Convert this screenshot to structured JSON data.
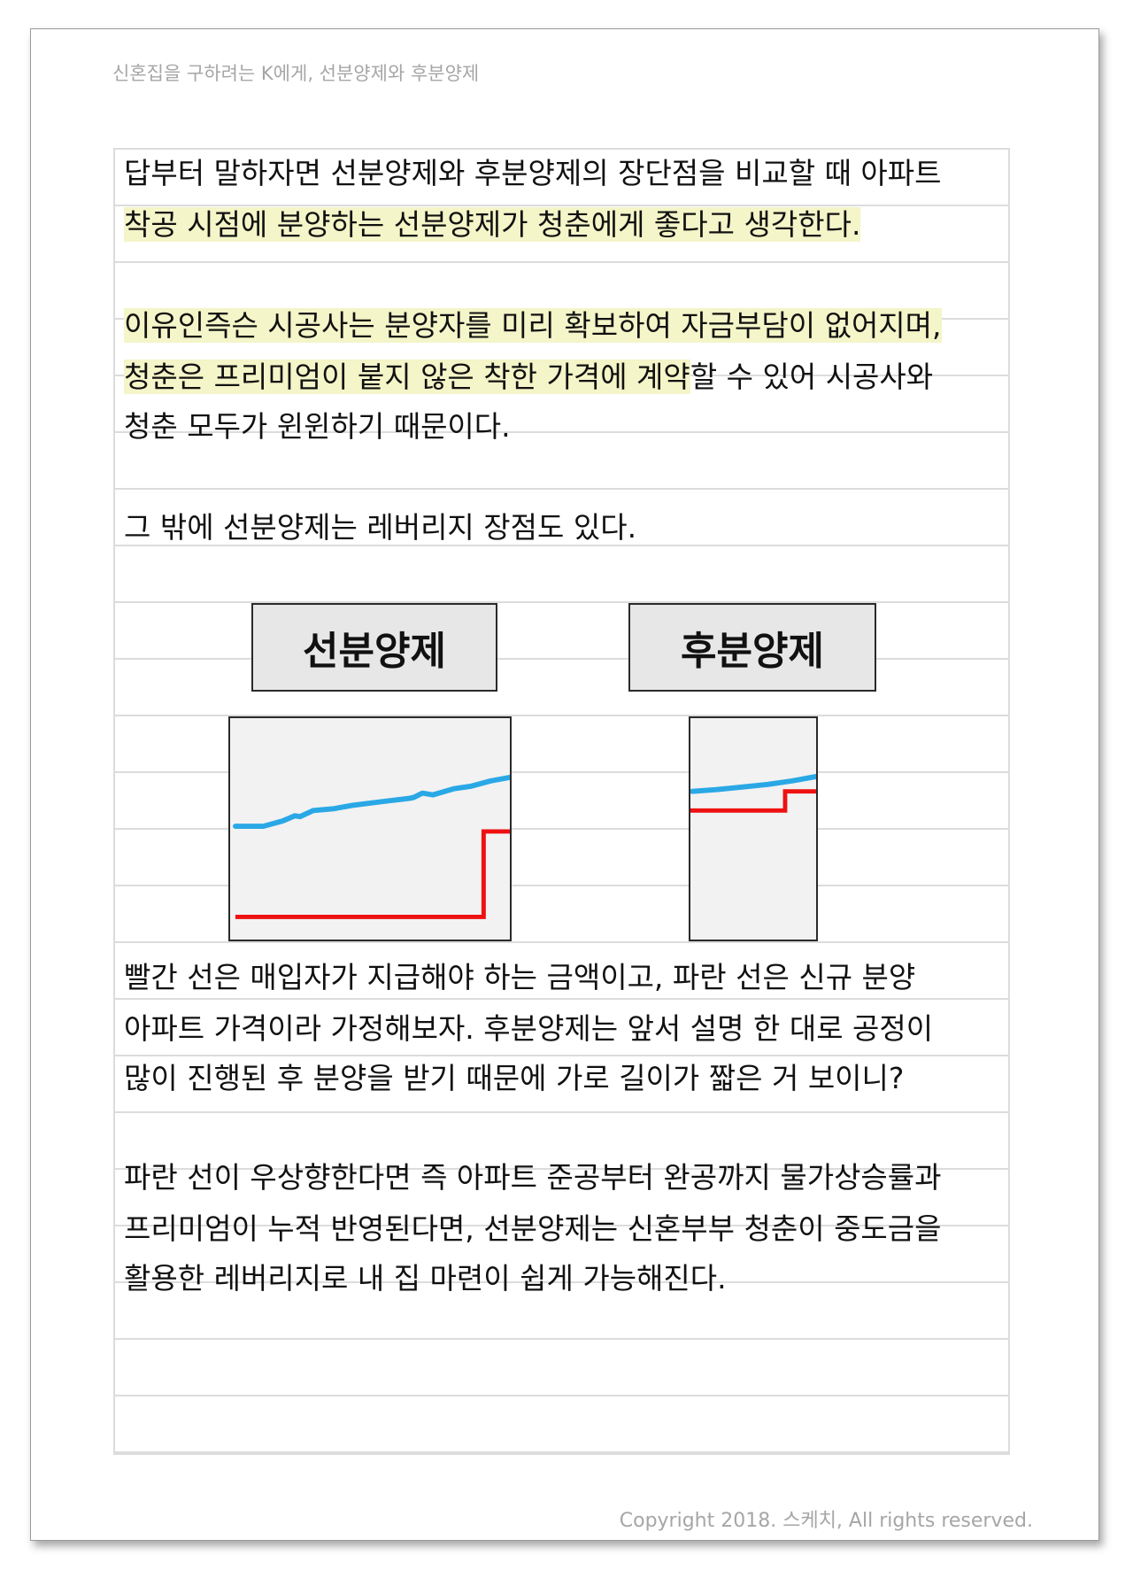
{
  "header": {
    "running_title": "신혼집을 구하려는 K에게, 선분양제와 후분양제"
  },
  "paragraph1": {
    "line1": "답부터 말하자면 선분양제와 후분양제의 장단점을 비교할 때 아파트",
    "line2": "착공 시점에 분양하는 선분양제가 청춘에게 좋다고 생각한다."
  },
  "paragraph2": {
    "line1": "이유인즉슨 시공사는 분양자를 미리 확보하여 자금부담이 없어지며,",
    "line2_highlight": "청춘은 프리미엄이 붙지 않은 착한 가격에 계약",
    "line2_rest": "할 수 있어 시공사와",
    "line3": "청춘 모두가 윈윈하기 때문이다."
  },
  "paragraph3": {
    "line1": "그 밖에 선분양제는 레버리지 장점도 있다."
  },
  "figure": {
    "left_label": "선분양제",
    "right_label": "후분양제",
    "line_colors": {
      "price_line": "#2aa8e6",
      "payment_line": "#ee1111"
    }
  },
  "paragraph4": {
    "line1": "빨간 선은 매입자가 지급해야 하는 금액이고, 파란 선은 신규 분양",
    "line2": "아파트 가격이라 가정해보자. 후분양제는 앞서 설명 한 대로 공정이",
    "line3": "많이 진행된 후 분양을 받기 때문에 가로 길이가 짧은 거 보이니?"
  },
  "paragraph5": {
    "line1": "파란 선이 우상향한다면 즉 아파트 준공부터 완공까지 물가상승률과",
    "line2": "프리미엄이 누적 반영된다면, 선분양제는 신혼부부 청춘이 중도금을",
    "line3": "활용한 레버리지로 내 집 마련이 쉽게 가능해진다."
  },
  "footer": {
    "copyright": "Copyright 2018. 스케치, All rights reserved."
  }
}
